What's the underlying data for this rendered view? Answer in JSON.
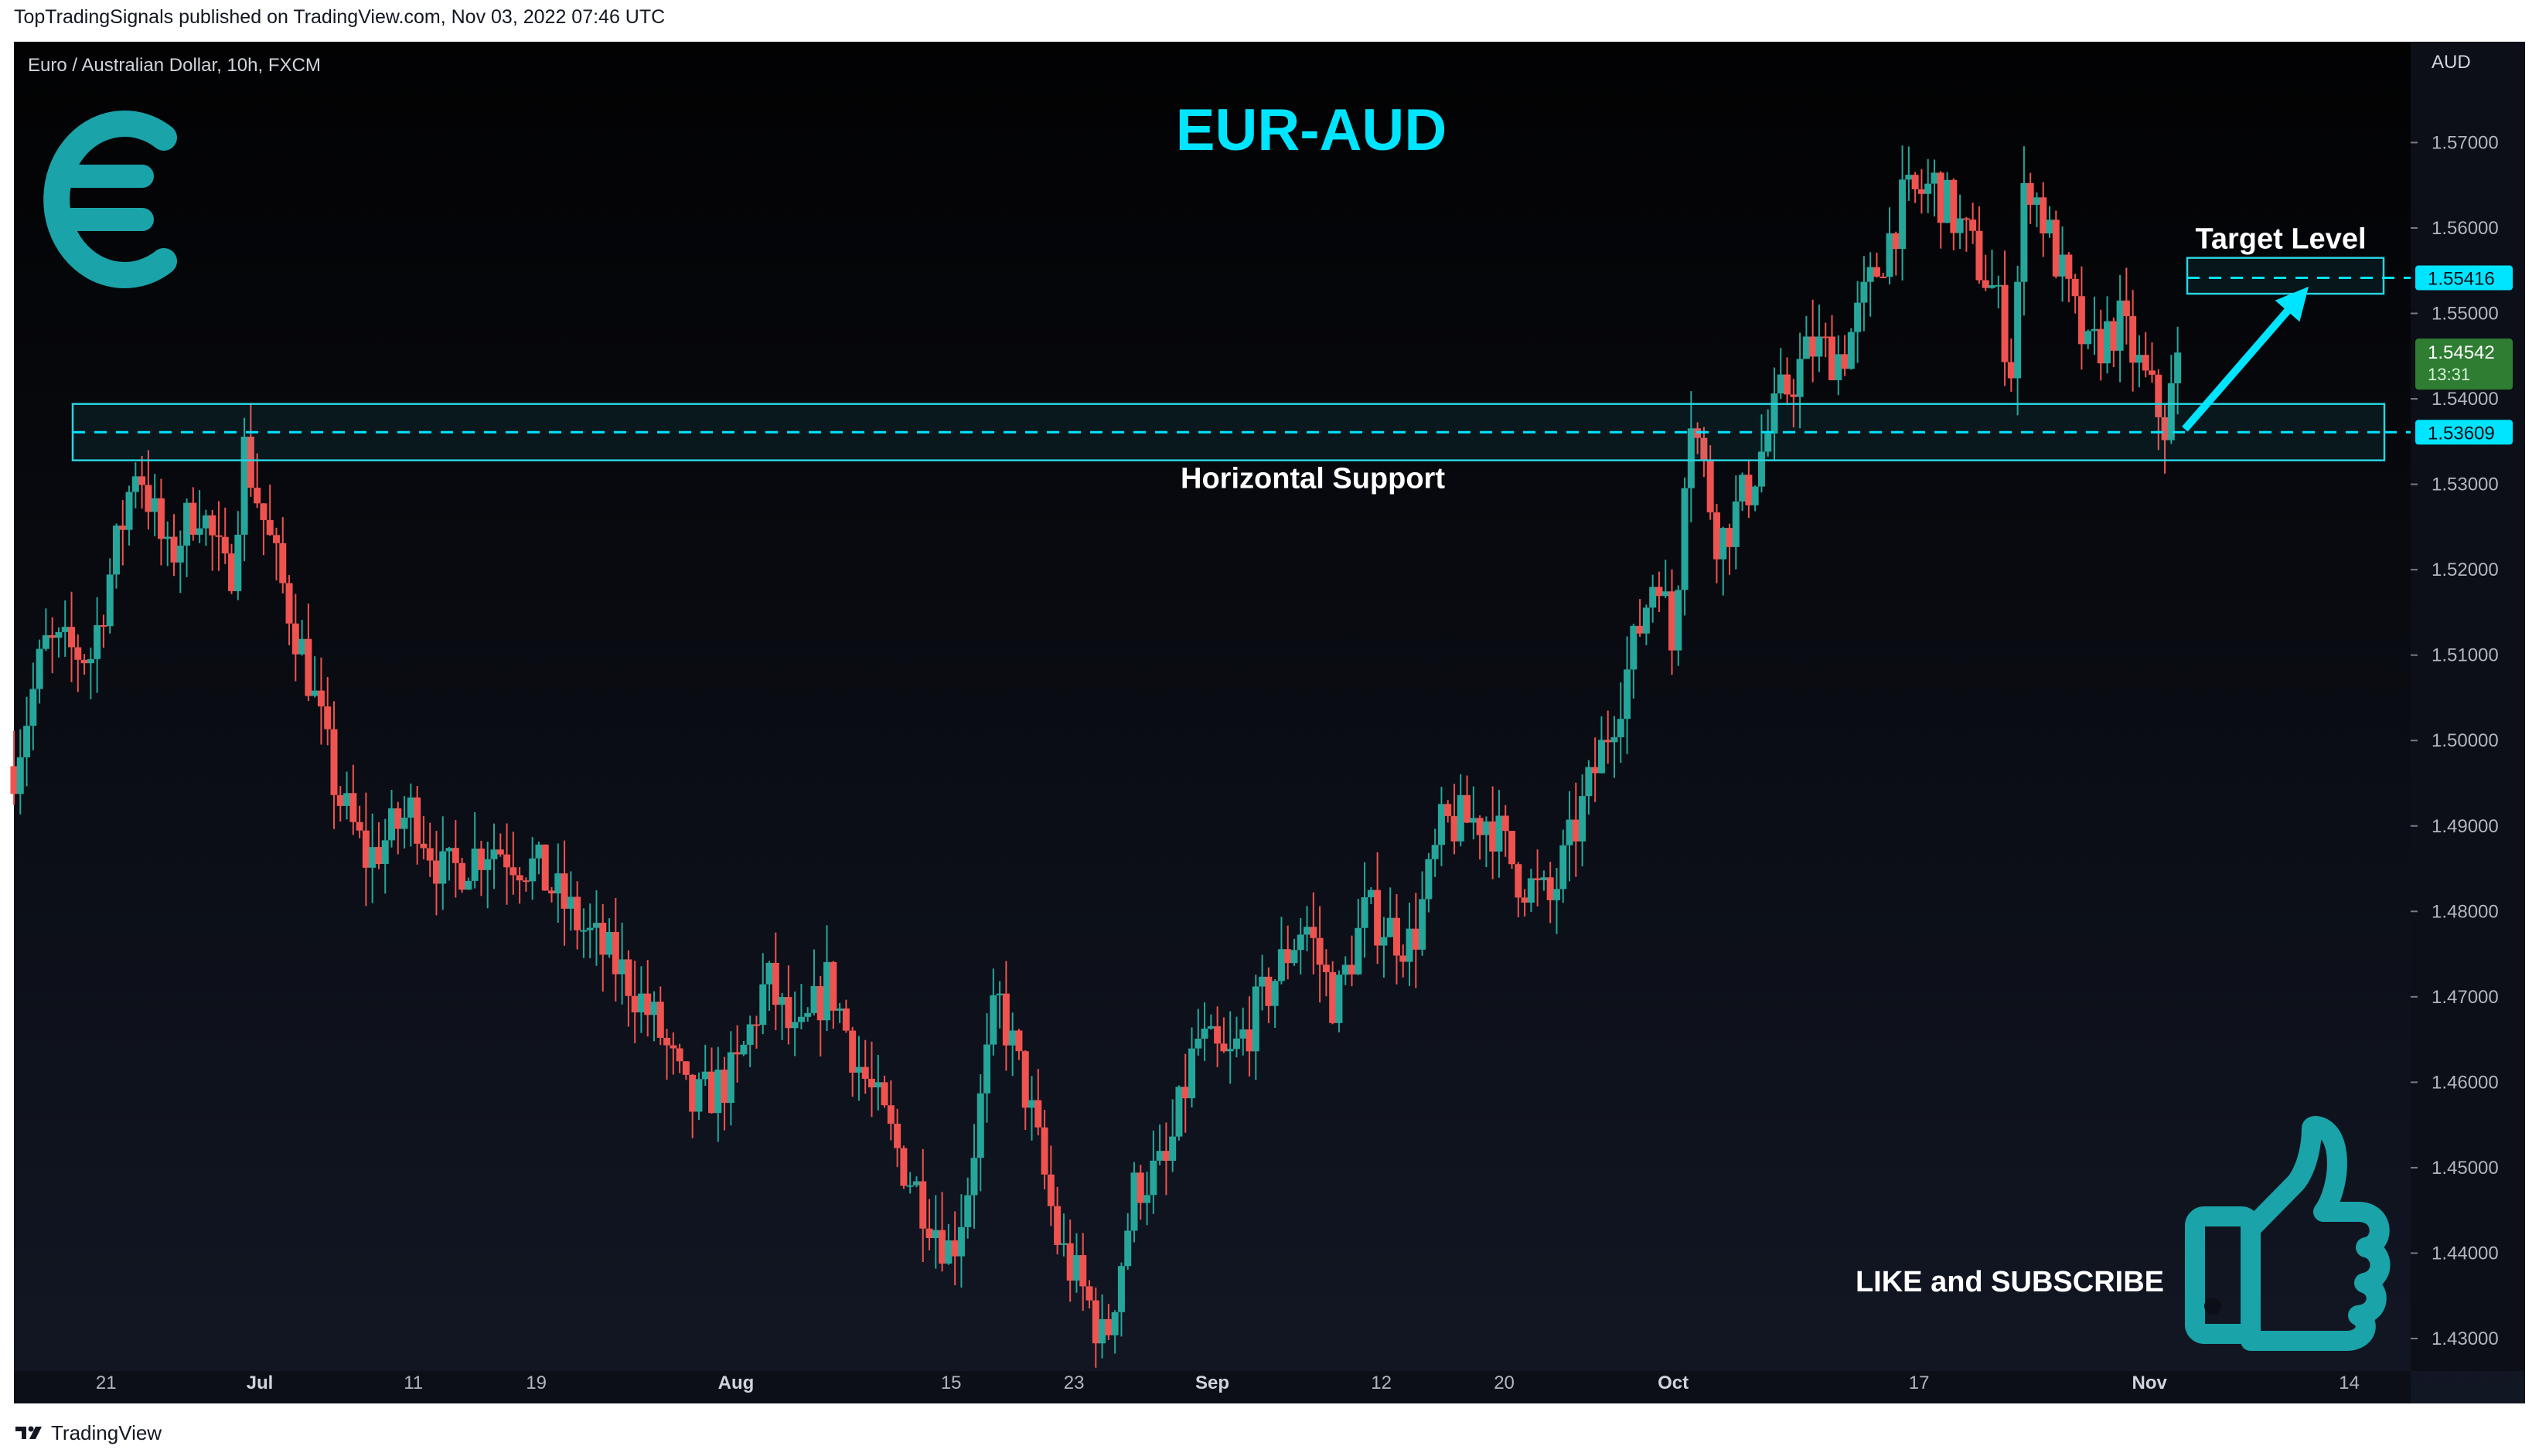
{
  "header": {
    "published": "TopTradingSignals published on TradingView.com, Nov 03, 2022 07:46 UTC"
  },
  "footer": {
    "brand": "TradingView",
    "logo_icon": "tradingview-logo-icon"
  },
  "colors": {
    "background": "#0c0f17",
    "up": "#26a69a",
    "down": "#ef5350",
    "accent": "#00e5ff",
    "annotation": "#29d3e0",
    "icon": "#1aa3a8",
    "current_price_bg": "#2e7d32"
  },
  "chart_data": {
    "type": "candlestick",
    "symbol_label": "Euro / Australian Dollar, 10h, FXCM",
    "title": "EUR-AUD",
    "currency_label": "AUD",
    "ylim": [
      1.4262,
      1.5818
    ],
    "y_ticks": [
      "1.57000",
      "1.56000",
      "1.55000",
      "1.54000",
      "1.53000",
      "1.52000",
      "1.51000",
      "1.50000",
      "1.49000",
      "1.48000",
      "1.47000",
      "1.46000",
      "1.45000",
      "1.44000",
      "1.43000"
    ],
    "x_ticks": [
      "21",
      "Jul",
      "11",
      "19",
      "Aug",
      "15",
      "23",
      "Sep",
      "12",
      "20",
      "Oct",
      "17",
      "Nov",
      "14"
    ],
    "x_ticks_bold": [
      "Jul",
      "Aug",
      "Sep",
      "Oct",
      "Nov"
    ],
    "approx_close_path": [
      {
        "date": "2022-06-15",
        "close": 1.497
      },
      {
        "date": "2022-06-17",
        "close": 1.511
      },
      {
        "date": "2022-06-20",
        "close": 1.51
      },
      {
        "date": "2022-06-22",
        "close": 1.525
      },
      {
        "date": "2022-06-23",
        "close": 1.533
      },
      {
        "date": "2022-06-25",
        "close": 1.521
      },
      {
        "date": "2022-06-27",
        "close": 1.528
      },
      {
        "date": "2022-06-29",
        "close": 1.518
      },
      {
        "date": "2022-06-30",
        "close": 1.534
      },
      {
        "date": "2022-07-02",
        "close": 1.521
      },
      {
        "date": "2022-07-04",
        "close": 1.509
      },
      {
        "date": "2022-07-06",
        "close": 1.494
      },
      {
        "date": "2022-07-08",
        "close": 1.486
      },
      {
        "date": "2022-07-11",
        "close": 1.492
      },
      {
        "date": "2022-07-13",
        "close": 1.484
      },
      {
        "date": "2022-07-16",
        "close": 1.488
      },
      {
        "date": "2022-07-19",
        "close": 1.485
      },
      {
        "date": "2022-07-22",
        "close": 1.478
      },
      {
        "date": "2022-07-25",
        "close": 1.472
      },
      {
        "date": "2022-07-27",
        "close": 1.466
      },
      {
        "date": "2022-07-29",
        "close": 1.457
      },
      {
        "date": "2022-08-01",
        "close": 1.461
      },
      {
        "date": "2022-08-03",
        "close": 1.472
      },
      {
        "date": "2022-08-05",
        "close": 1.464
      },
      {
        "date": "2022-08-07",
        "close": 1.472
      },
      {
        "date": "2022-08-09",
        "close": 1.462
      },
      {
        "date": "2022-08-12",
        "close": 1.45
      },
      {
        "date": "2022-08-15",
        "close": 1.44
      },
      {
        "date": "2022-08-16",
        "close": 1.447
      },
      {
        "date": "2022-08-18",
        "close": 1.47
      },
      {
        "date": "2022-08-20",
        "close": 1.458
      },
      {
        "date": "2022-08-22",
        "close": 1.441
      },
      {
        "date": "2022-08-24",
        "close": 1.434
      },
      {
        "date": "2022-08-25",
        "close": 1.429
      },
      {
        "date": "2022-08-27",
        "close": 1.448
      },
      {
        "date": "2022-08-29",
        "close": 1.45
      },
      {
        "date": "2022-08-31",
        "close": 1.465
      },
      {
        "date": "2022-09-02",
        "close": 1.462
      },
      {
        "date": "2022-09-05",
        "close": 1.472
      },
      {
        "date": "2022-09-07",
        "close": 1.479
      },
      {
        "date": "2022-09-09",
        "close": 1.469
      },
      {
        "date": "2022-09-11",
        "close": 1.48
      },
      {
        "date": "2022-09-14",
        "close": 1.476
      },
      {
        "date": "2022-09-16",
        "close": 1.49
      },
      {
        "date": "2022-09-19",
        "close": 1.491
      },
      {
        "date": "2022-09-21",
        "close": 1.484
      },
      {
        "date": "2022-09-23",
        "close": 1.481
      },
      {
        "date": "2022-09-26",
        "close": 1.497
      },
      {
        "date": "2022-09-28",
        "close": 1.508
      },
      {
        "date": "2022-09-30",
        "close": 1.521
      },
      {
        "date": "2022-10-01",
        "close": 1.51
      },
      {
        "date": "2022-10-02",
        "close": 1.54
      },
      {
        "date": "2022-10-04",
        "close": 1.523
      },
      {
        "date": "2022-10-06",
        "close": 1.53
      },
      {
        "date": "2022-10-08",
        "close": 1.54
      },
      {
        "date": "2022-10-10",
        "close": 1.546
      },
      {
        "date": "2022-10-12",
        "close": 1.545
      },
      {
        "date": "2022-10-14",
        "close": 1.554
      },
      {
        "date": "2022-10-16",
        "close": 1.563
      },
      {
        "date": "2022-10-18",
        "close": 1.565
      },
      {
        "date": "2022-10-20",
        "close": 1.559
      },
      {
        "date": "2022-10-22",
        "close": 1.552
      },
      {
        "date": "2022-10-23",
        "close": 1.544
      },
      {
        "date": "2022-10-24",
        "close": 1.567
      },
      {
        "date": "2022-10-26",
        "close": 1.556
      },
      {
        "date": "2022-10-28",
        "close": 1.545
      },
      {
        "date": "2022-10-30",
        "close": 1.549
      },
      {
        "date": "2022-11-01",
        "close": 1.541
      },
      {
        "date": "2022-11-02",
        "close": 1.537
      },
      {
        "date": "2022-11-03",
        "close": 1.54542
      }
    ],
    "price_labels": [
      {
        "value": 1.55416,
        "text": "1.55416"
      },
      {
        "value": 1.53609,
        "text": "1.53609"
      }
    ],
    "current_price": {
      "value": 1.54542,
      "text": "1.54542",
      "countdown": "13:31"
    },
    "annotations": {
      "horizontal_support": {
        "value": 1.53609,
        "zone": [
          1.5328,
          1.5394
        ],
        "label": "Horizontal Support"
      },
      "target_level": {
        "value": 1.55416,
        "zone": [
          1.5523,
          1.5565
        ],
        "label": "Target Level"
      },
      "cta": "LIKE and SUBSCRIBE"
    }
  }
}
